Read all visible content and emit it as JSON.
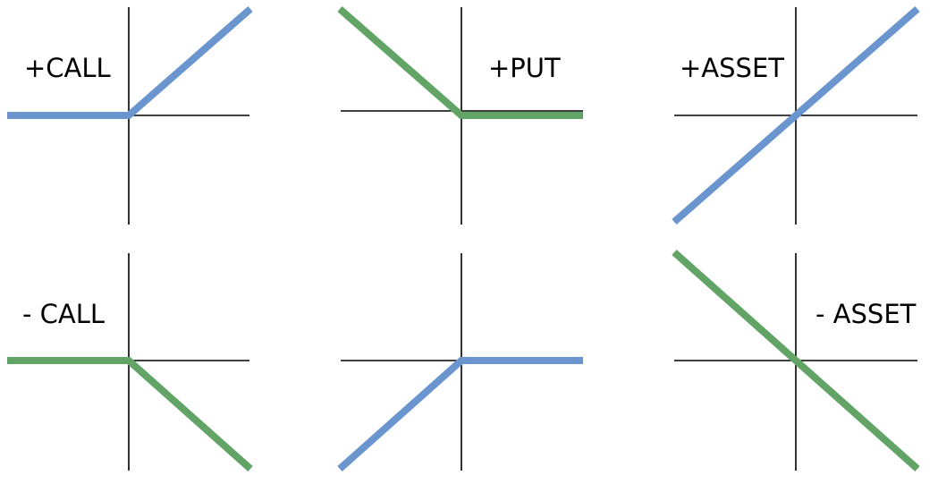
{
  "colors": {
    "blue": "#6a95cf",
    "green": "#62a466",
    "axis": "#000000"
  },
  "chart_data": [
    {
      "type": "line",
      "title": "+CALL",
      "series": [
        {
          "color": "blue",
          "x": [
            -1,
            0,
            1
          ],
          "y": [
            0,
            0,
            1
          ]
        }
      ]
    },
    {
      "type": "line",
      "title": "+PUT",
      "series": [
        {
          "color": "green",
          "x": [
            -1,
            0,
            1
          ],
          "y": [
            1,
            0,
            0
          ]
        }
      ]
    },
    {
      "type": "line",
      "title": "+ASSET",
      "series": [
        {
          "color": "blue",
          "x": [
            -1,
            1
          ],
          "y": [
            -1,
            1
          ]
        }
      ]
    },
    {
      "type": "line",
      "title": "- CALL",
      "series": [
        {
          "color": "green",
          "x": [
            -1,
            0,
            1
          ],
          "y": [
            0,
            0,
            -1
          ]
        }
      ]
    },
    {
      "type": "line",
      "title": "",
      "series": [
        {
          "color": "blue",
          "x": [
            -1,
            0,
            1
          ],
          "y": [
            -1,
            0,
            0
          ]
        }
      ]
    },
    {
      "type": "line",
      "title": "- ASSET",
      "series": [
        {
          "color": "green",
          "x": [
            -1,
            1
          ],
          "y": [
            1,
            -1
          ]
        }
      ]
    }
  ]
}
